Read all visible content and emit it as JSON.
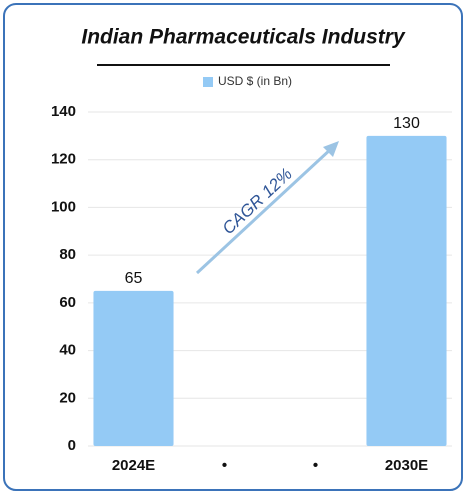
{
  "chart_data": {
    "type": "bar",
    "title": "Indian Pharmaceuticals Industry",
    "legend": "USD $ (in Bn)",
    "annotation": "CAGR 12%",
    "categories": [
      "2024E",
      "•",
      "•",
      "2030E"
    ],
    "values": [
      65,
      null,
      null,
      130
    ],
    "color": "#94caf5",
    "ylim": [
      0,
      140
    ],
    "yticks": [
      0,
      20,
      40,
      60,
      80,
      100,
      120,
      140
    ],
    "grid": true
  }
}
